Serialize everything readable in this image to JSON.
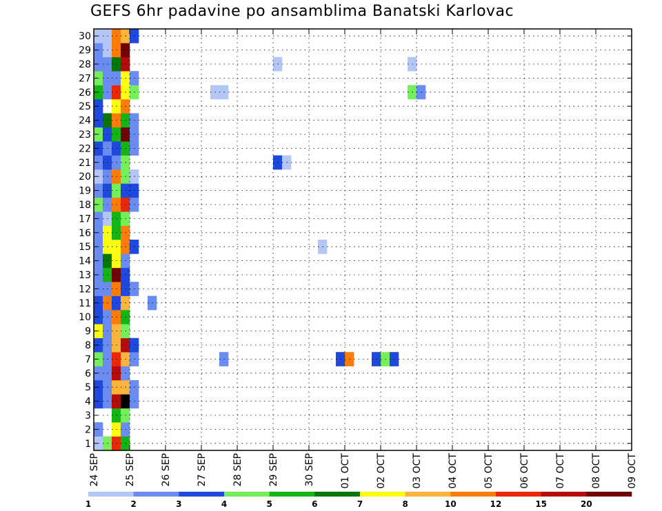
{
  "chart_data": {
    "type": "heatmap",
    "title": "GEFS 6hr padavine po ansamblima Banatski Karlovac",
    "y_labels": [
      "1",
      "2",
      "3",
      "4",
      "5",
      "6",
      "7",
      "8",
      "9",
      "10",
      "11",
      "12",
      "13",
      "14",
      "15",
      "16",
      "17",
      "18",
      "19",
      "20",
      "21",
      "22",
      "23",
      "24",
      "25",
      "26",
      "27",
      "28",
      "29",
      "30"
    ],
    "x_ticks": [
      "24 SEP",
      "25 SEP",
      "26 SEP",
      "27 SEP",
      "28 SEP",
      "29 SEP",
      "30 SEP",
      "01 OCT",
      "02 OCT",
      "03 OCT",
      "04 OCT",
      "05 OCT",
      "06 OCT",
      "07 OCT",
      "08 OCT",
      "09 OCT"
    ],
    "x_range": [
      "24 SEP 00h",
      "09 OCT 00h"
    ],
    "time_step_hours": 6,
    "grid": "dotted",
    "colorbar": {
      "labels": [
        "1",
        "2",
        "3",
        "4",
        "5",
        "6",
        "7",
        "8",
        "10",
        "12",
        "15",
        "20"
      ],
      "colors": [
        "#b4c6f5",
        "#6a8cf0",
        "#1f48dc",
        "#74ee5a",
        "#14b414",
        "#087608",
        "#fbfb14",
        "#fbb43c",
        "#fb7c0a",
        "#e8280a",
        "#b40c0a",
        "#700404"
      ]
    },
    "cells": [
      [
        1,
        0,
        0
      ],
      [
        1,
        1,
        3
      ],
      [
        1,
        2,
        9
      ],
      [
        1,
        3,
        4
      ],
      [
        2,
        0,
        1
      ],
      [
        2,
        2,
        6
      ],
      [
        2,
        3,
        1
      ],
      [
        3,
        2,
        4
      ],
      [
        3,
        3,
        3
      ],
      [
        4,
        0,
        2
      ],
      [
        4,
        1,
        1
      ],
      [
        4,
        2,
        10
      ],
      [
        4,
        3,
        12
      ],
      [
        4,
        4,
        1
      ],
      [
        5,
        0,
        2
      ],
      [
        5,
        1,
        1
      ],
      [
        5,
        2,
        7
      ],
      [
        5,
        3,
        7
      ],
      [
        5,
        4,
        1
      ],
      [
        6,
        0,
        1
      ],
      [
        6,
        1,
        1
      ],
      [
        6,
        2,
        10
      ],
      [
        6,
        3,
        1
      ],
      [
        7,
        0,
        3
      ],
      [
        7,
        1,
        1
      ],
      [
        7,
        2,
        9
      ],
      [
        7,
        3,
        7
      ],
      [
        7,
        4,
        1
      ],
      [
        7,
        14,
        1
      ],
      [
        7,
        27,
        2
      ],
      [
        7,
        28,
        8
      ],
      [
        7,
        31,
        2
      ],
      [
        7,
        32,
        3
      ],
      [
        7,
        33,
        2
      ],
      [
        8,
        0,
        2
      ],
      [
        8,
        1,
        1
      ],
      [
        8,
        2,
        7
      ],
      [
        8,
        3,
        10
      ],
      [
        8,
        4,
        2
      ],
      [
        9,
        0,
        6
      ],
      [
        9,
        1,
        1
      ],
      [
        9,
        2,
        7
      ],
      [
        9,
        3,
        3
      ],
      [
        10,
        0,
        2
      ],
      [
        10,
        1,
        1
      ],
      [
        10,
        2,
        8
      ],
      [
        10,
        3,
        4
      ],
      [
        11,
        0,
        2
      ],
      [
        11,
        1,
        8
      ],
      [
        11,
        2,
        2
      ],
      [
        11,
        3,
        7
      ],
      [
        11,
        6,
        1
      ],
      [
        12,
        0,
        1
      ],
      [
        12,
        1,
        1
      ],
      [
        12,
        2,
        8
      ],
      [
        12,
        3,
        2
      ],
      [
        12,
        4,
        1
      ],
      [
        13,
        0,
        1
      ],
      [
        13,
        1,
        4
      ],
      [
        13,
        2,
        11
      ],
      [
        13,
        3,
        2
      ],
      [
        14,
        0,
        1
      ],
      [
        14,
        1,
        5
      ],
      [
        14,
        2,
        6
      ],
      [
        14,
        3,
        1
      ],
      [
        15,
        0,
        1
      ],
      [
        15,
        1,
        6
      ],
      [
        15,
        2,
        6
      ],
      [
        15,
        3,
        8
      ],
      [
        15,
        4,
        2
      ],
      [
        15,
        25,
        0
      ],
      [
        16,
        0,
        1
      ],
      [
        16,
        1,
        6
      ],
      [
        16,
        2,
        4
      ],
      [
        16,
        3,
        8
      ],
      [
        17,
        0,
        1
      ],
      [
        17,
        1,
        0
      ],
      [
        17,
        2,
        4
      ],
      [
        17,
        3,
        3
      ],
      [
        18,
        0,
        3
      ],
      [
        18,
        1,
        1
      ],
      [
        18,
        2,
        8
      ],
      [
        18,
        3,
        9
      ],
      [
        18,
        4,
        1
      ],
      [
        19,
        0,
        1
      ],
      [
        19,
        1,
        2
      ],
      [
        19,
        2,
        3
      ],
      [
        19,
        3,
        2
      ],
      [
        19,
        4,
        2
      ],
      [
        20,
        0,
        0
      ],
      [
        20,
        1,
        1
      ],
      [
        20,
        2,
        8
      ],
      [
        20,
        3,
        3
      ],
      [
        20,
        4,
        0
      ],
      [
        21,
        0,
        1
      ],
      [
        21,
        1,
        2
      ],
      [
        21,
        2,
        1
      ],
      [
        21,
        3,
        3
      ],
      [
        21,
        20,
        2
      ],
      [
        21,
        21,
        0
      ],
      [
        22,
        0,
        2
      ],
      [
        22,
        1,
        1
      ],
      [
        22,
        2,
        2
      ],
      [
        22,
        3,
        4
      ],
      [
        22,
        4,
        1
      ],
      [
        23,
        0,
        3
      ],
      [
        23,
        1,
        2
      ],
      [
        23,
        2,
        4
      ],
      [
        23,
        3,
        11
      ],
      [
        23,
        4,
        1
      ],
      [
        24,
        0,
        2
      ],
      [
        24,
        1,
        5
      ],
      [
        24,
        2,
        8
      ],
      [
        24,
        3,
        4
      ],
      [
        24,
        4,
        1
      ],
      [
        25,
        0,
        2
      ],
      [
        25,
        2,
        6
      ],
      [
        25,
        3,
        8
      ],
      [
        26,
        0,
        4
      ],
      [
        26,
        1,
        1
      ],
      [
        26,
        2,
        9
      ],
      [
        26,
        3,
        6
      ],
      [
        26,
        4,
        3
      ],
      [
        26,
        13,
        0
      ],
      [
        26,
        14,
        0
      ],
      [
        26,
        35,
        3
      ],
      [
        26,
        36,
        1
      ],
      [
        27,
        0,
        3
      ],
      [
        27,
        1,
        1
      ],
      [
        27,
        2,
        1
      ],
      [
        27,
        3,
        6
      ],
      [
        27,
        4,
        1
      ],
      [
        28,
        0,
        1
      ],
      [
        28,
        1,
        1
      ],
      [
        28,
        2,
        5
      ],
      [
        28,
        3,
        10
      ],
      [
        28,
        20,
        0
      ],
      [
        28,
        35,
        0
      ],
      [
        29,
        0,
        1
      ],
      [
        29,
        1,
        0
      ],
      [
        29,
        2,
        8
      ],
      [
        29,
        3,
        11
      ],
      [
        30,
        0,
        0
      ],
      [
        30,
        1,
        0
      ],
      [
        30,
        2,
        8
      ],
      [
        30,
        3,
        7
      ],
      [
        30,
        4,
        2
      ]
    ]
  }
}
